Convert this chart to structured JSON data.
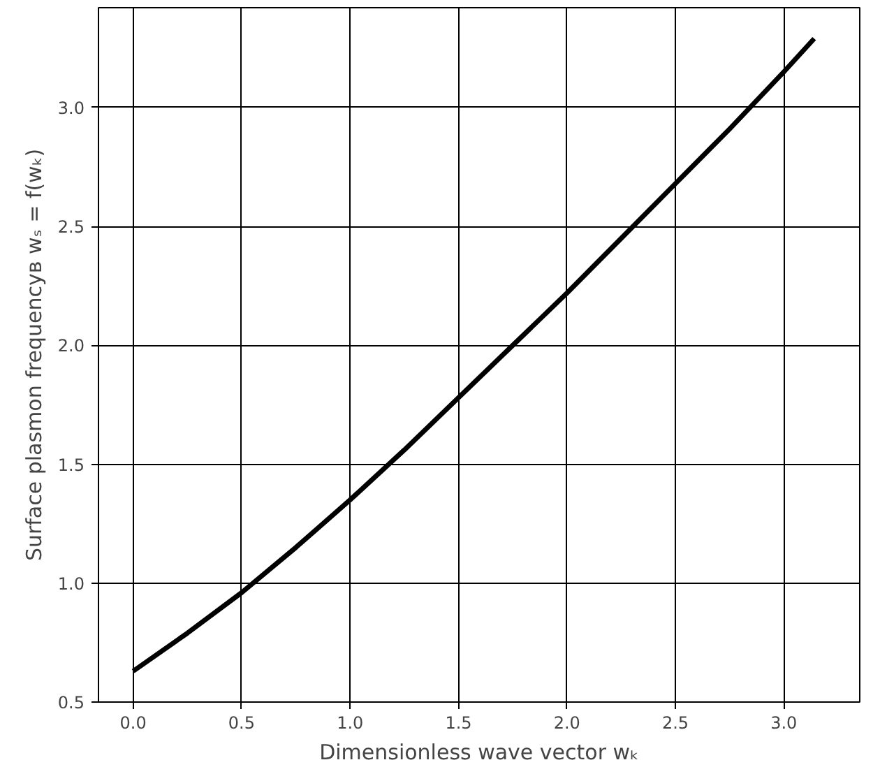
{
  "chart_data": {
    "type": "line",
    "xlabel": "Dimensionless wave vector wₖ",
    "ylabel": "Surface plasmon frequencyв wₛ = f(wₖ)",
    "x": [
      0.0,
      0.25,
      0.5,
      0.75,
      1.0,
      1.25,
      1.5,
      1.75,
      2.0,
      2.25,
      2.5,
      2.75,
      3.0,
      3.14
    ],
    "series": [
      {
        "color": "#000000",
        "values": [
          0.63,
          0.79,
          0.96,
          1.15,
          1.35,
          1.56,
          1.78,
          2.0,
          2.22,
          2.45,
          2.68,
          2.91,
          3.15,
          3.29
        ]
      }
    ],
    "xlim": [
      -0.16,
      3.35
    ],
    "ylim": [
      0.5,
      3.42
    ],
    "xticks": [
      {
        "value": 0,
        "label": "0.0"
      },
      0.5,
      {
        "value": 1,
        "label": "1.0"
      },
      1.5,
      {
        "value": 2,
        "label": "2.0"
      },
      2.5,
      {
        "value": 3,
        "label": "3.0"
      }
    ],
    "yticks": [
      0.5,
      {
        "value": 1,
        "label": "1.0"
      },
      1.5,
      {
        "value": 2,
        "label": "2.0"
      },
      2.5,
      {
        "value": 3,
        "label": "3.0"
      }
    ],
    "grid": true,
    "line_style": "solid"
  }
}
